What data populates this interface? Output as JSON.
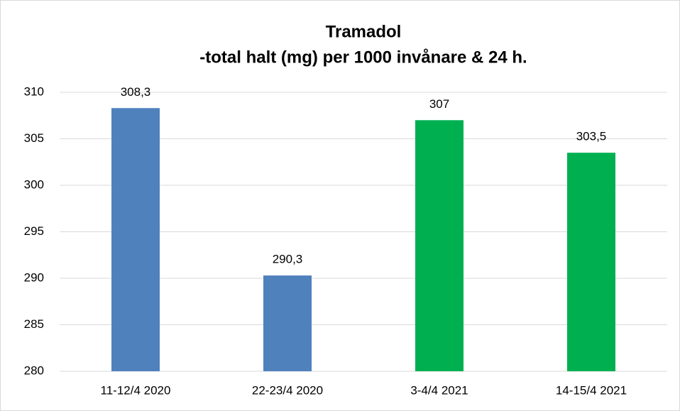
{
  "chart_data": {
    "type": "bar",
    "title": [
      "Tramadol",
      "-total halt (mg) per 1000 invånare & 24 h."
    ],
    "categories": [
      "11-12/4 2020",
      "22-23/4 2020",
      "3-4/4 2021",
      "14-15/4 2021"
    ],
    "values": [
      308.3,
      290.3,
      307,
      303.5
    ],
    "value_labels": [
      "308,3",
      "290,3",
      "307",
      "303,5"
    ],
    "colors": [
      "#4f81bd",
      "#4f81bd",
      "#00b050",
      "#00b050"
    ],
    "ylim": [
      280,
      310
    ],
    "yticks": [
      280,
      285,
      290,
      295,
      300,
      305,
      310
    ],
    "grid": true
  }
}
